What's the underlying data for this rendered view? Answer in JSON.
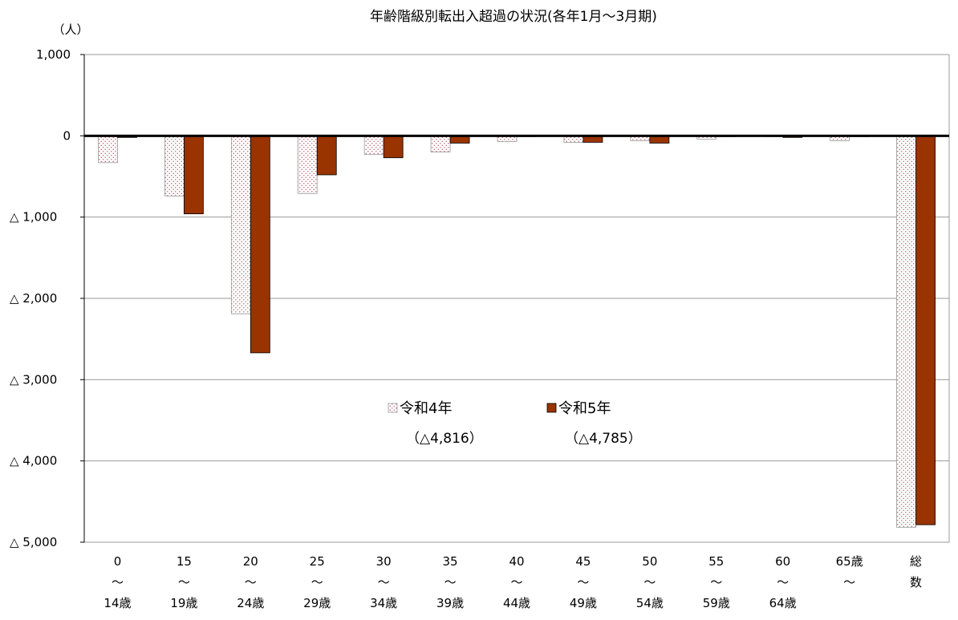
{
  "chart_data": {
    "type": "bar",
    "title": "年齢階級別転出入超過の状況(各年1月～3月期)",
    "unit_label": "（人）",
    "ylim": [
      -5000,
      1000
    ],
    "yticks": [
      {
        "value": 1000,
        "label": "1,000"
      },
      {
        "value": 0,
        "label": "0"
      },
      {
        "value": -1000,
        "label": "△ 1,000"
      },
      {
        "value": -2000,
        "label": "△ 2,000"
      },
      {
        "value": -3000,
        "label": "△ 3,000"
      },
      {
        "value": -4000,
        "label": "△ 4,000"
      },
      {
        "value": -5000,
        "label": "△ 5,000"
      }
    ],
    "grid": true,
    "categories": [
      {
        "lines": [
          "0",
          "～",
          "14歳"
        ]
      },
      {
        "lines": [
          "15",
          "～",
          "19歳"
        ]
      },
      {
        "lines": [
          "20",
          "～",
          "24歳"
        ]
      },
      {
        "lines": [
          "25",
          "～",
          "29歳"
        ]
      },
      {
        "lines": [
          "30",
          "～",
          "34歳"
        ]
      },
      {
        "lines": [
          "35",
          "～",
          "39歳"
        ]
      },
      {
        "lines": [
          "40",
          "～",
          "44歳"
        ]
      },
      {
        "lines": [
          "45",
          "～",
          "49歳"
        ]
      },
      {
        "lines": [
          "50",
          "～",
          "54歳"
        ]
      },
      {
        "lines": [
          "55",
          "～",
          "59歳"
        ]
      },
      {
        "lines": [
          "60",
          "～",
          "64歳"
        ]
      },
      {
        "lines": [
          "65歳",
          "～"
        ]
      },
      {
        "lines": [
          "総",
          "数"
        ]
      }
    ],
    "series": [
      {
        "name": "令和4年",
        "total_label": "（△4,816）",
        "color": "#c98a8a",
        "pattern": "dotted",
        "values": [
          -330,
          -740,
          -2190,
          -710,
          -230,
          -200,
          -70,
          -80,
          -60,
          -40,
          -10,
          -60,
          -4816
        ]
      },
      {
        "name": "令和5年",
        "total_label": "（△4,785）",
        "color": "#993300",
        "pattern": "solid",
        "values": [
          -20,
          -960,
          -2670,
          -480,
          -270,
          -90,
          0,
          -80,
          -90,
          -10,
          -20,
          0,
          -4785
        ]
      }
    ],
    "legend_position": "center"
  }
}
